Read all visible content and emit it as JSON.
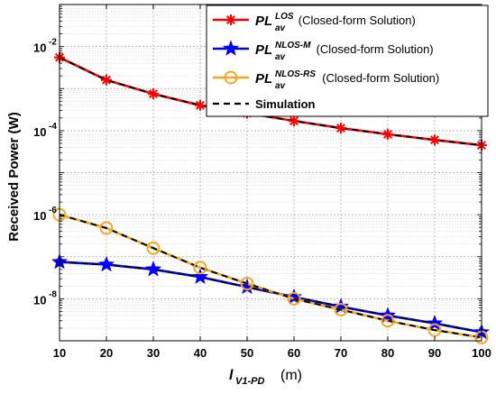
{
  "chart_data": {
    "type": "line",
    "y_scale": "log",
    "xlabel_main": "l",
    "xlabel_sub": "V1-PD",
    "xlabel_unit": "(m)",
    "ylabel": "Received Power (W)",
    "xlim": [
      10,
      100
    ],
    "ylim": [
      1e-09,
      0.1
    ],
    "grid": true,
    "legend_position": "top-right",
    "x_ticks": [
      10,
      20,
      30,
      40,
      50,
      60,
      70,
      80,
      90,
      100
    ],
    "x_tick_labels": [
      "10",
      "20",
      "30",
      "40",
      "50",
      "60",
      "70",
      "80",
      "90",
      "100"
    ],
    "y_ticks": [
      {
        "value": 1e-08,
        "base": "10",
        "exp": "-8"
      },
      {
        "value": 1e-06,
        "base": "10",
        "exp": "-6"
      },
      {
        "value": 0.0001,
        "base": "10",
        "exp": "-4"
      },
      {
        "value": 0.01,
        "base": "10",
        "exp": "-2"
      }
    ],
    "x": [
      10,
      20,
      30,
      40,
      50,
      60,
      70,
      80,
      90,
      100
    ],
    "series": [
      {
        "label_main": "PL",
        "label_sub": "av",
        "label_sup": "LOS",
        "label_tail": "(Closed-form Solution)",
        "color": "#ff0000",
        "marker": "asterisk",
        "values": [
          0.0055,
          0.0016,
          0.00075,
          0.0004,
          0.00026,
          0.00017,
          0.000115,
          8.2e-05,
          6e-05,
          4.5e-05
        ]
      },
      {
        "label_main": "PL",
        "label_sub": "av",
        "label_sup": "NLOS-M",
        "label_tail": "(Closed-form Solution)",
        "color": "#0000ff",
        "marker": "star",
        "values": [
          7.5e-08,
          6.5e-08,
          5e-08,
          3.3e-08,
          1.9e-08,
          1.1e-08,
          6.5e-09,
          4e-09,
          2.6e-09,
          1.6e-09
        ]
      },
      {
        "label_main": "PL",
        "label_sub": "av",
        "label_sup": "NLOS-RS",
        "label_tail": "(Closed-form Solution)",
        "color": "#f5a623",
        "marker": "circle",
        "values": [
          1e-06,
          4.8e-07,
          1.6e-07,
          5.5e-08,
          2.3e-08,
          1e-08,
          5.5e-09,
          3e-09,
          1.8e-09,
          1.2e-09
        ]
      }
    ],
    "simulation": {
      "label": "Simulation",
      "color": "#000000",
      "style": "dashed"
    }
  }
}
